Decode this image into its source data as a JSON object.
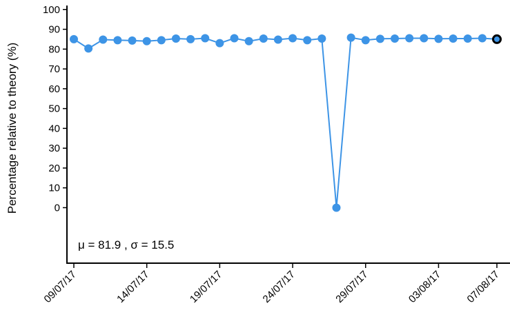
{
  "chart_data": {
    "type": "line",
    "title": "",
    "xlabel": "",
    "ylabel": "Percentage relative to theory (%)",
    "ylim": [
      -28,
      102
    ],
    "yticks": [
      0,
      10,
      20,
      30,
      40,
      50,
      60,
      70,
      80,
      90,
      100
    ],
    "xtick_labels": [
      "09/07/17",
      "14/07/17",
      "19/07/17",
      "24/07/17",
      "29/07/17",
      "03/08/17",
      "07/08/17"
    ],
    "x": [
      "09/07/17",
      "10/07/17",
      "11/07/17",
      "12/07/17",
      "13/07/17",
      "14/07/17",
      "15/07/17",
      "16/07/17",
      "17/07/17",
      "18/07/17",
      "19/07/17",
      "20/07/17",
      "21/07/17",
      "22/07/17",
      "23/07/17",
      "24/07/17",
      "25/07/17",
      "26/07/17",
      "27/07/17",
      "28/07/17",
      "29/07/17",
      "30/07/17",
      "31/07/17",
      "01/08/17",
      "02/08/17",
      "03/08/17",
      "04/08/17",
      "05/08/17",
      "06/08/17",
      "07/08/17"
    ],
    "values": [
      85,
      80.3,
      84.8,
      84.5,
      84.3,
      84,
      84.5,
      85.3,
      85,
      85.5,
      83,
      85.5,
      84,
      85.3,
      84.8,
      85.5,
      84.5,
      85.3,
      0,
      85.8,
      84.5,
      85.2,
      85.3,
      85.5,
      85.5,
      85.2,
      85.3,
      85.3,
      85.5,
      85
    ],
    "highlight_last": true,
    "series_color": "#3d94e6",
    "annotation": "μ = 81.9 , σ = 15.5",
    "grid": false
  }
}
